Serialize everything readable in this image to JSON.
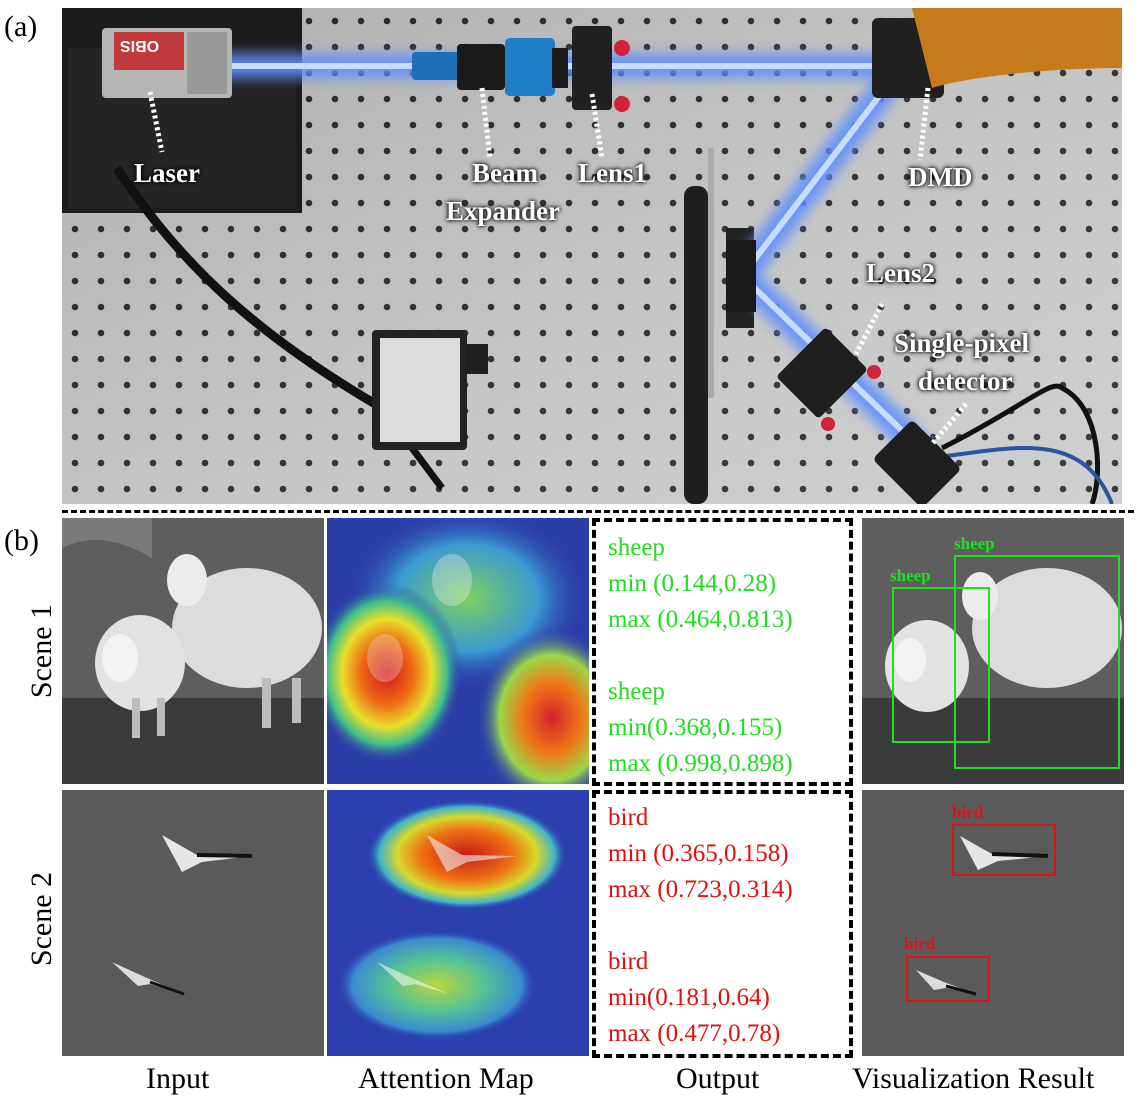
{
  "panel_a": {
    "label": "(a)",
    "components": {
      "laser": "Laser",
      "beam_expander_line1": "Beam",
      "beam_expander_line2": "Expander",
      "lens1": "Lens1",
      "dmd": "DMD",
      "lens2": "Lens2",
      "detector_line1": "Single-pixel",
      "detector_line2": "detector"
    },
    "laser_brand": "OBIS"
  },
  "panel_b": {
    "label": "(b)",
    "rows": [
      "Scene 1",
      "Scene 2"
    ],
    "columns": [
      "Input",
      "Attention Map",
      "Output",
      "Visualization Result"
    ],
    "scene1": {
      "color": "#22dd22",
      "output_lines": [
        "sheep",
        "min (0.144,0.28)",
        "max (0.464,0.813)",
        "",
        "sheep",
        "min(0.368,0.155)",
        "max (0.998,0.898)"
      ],
      "detections": [
        "sheep",
        "sheep"
      ]
    },
    "scene2": {
      "color": "#dd1111",
      "output_lines": [
        "bird",
        "min (0.365,0.158)",
        "max (0.723,0.314)",
        "",
        "bird",
        "min(0.181,0.64)",
        "max (0.477,0.78)"
      ],
      "detections": [
        "bird",
        "bird"
      ]
    }
  }
}
